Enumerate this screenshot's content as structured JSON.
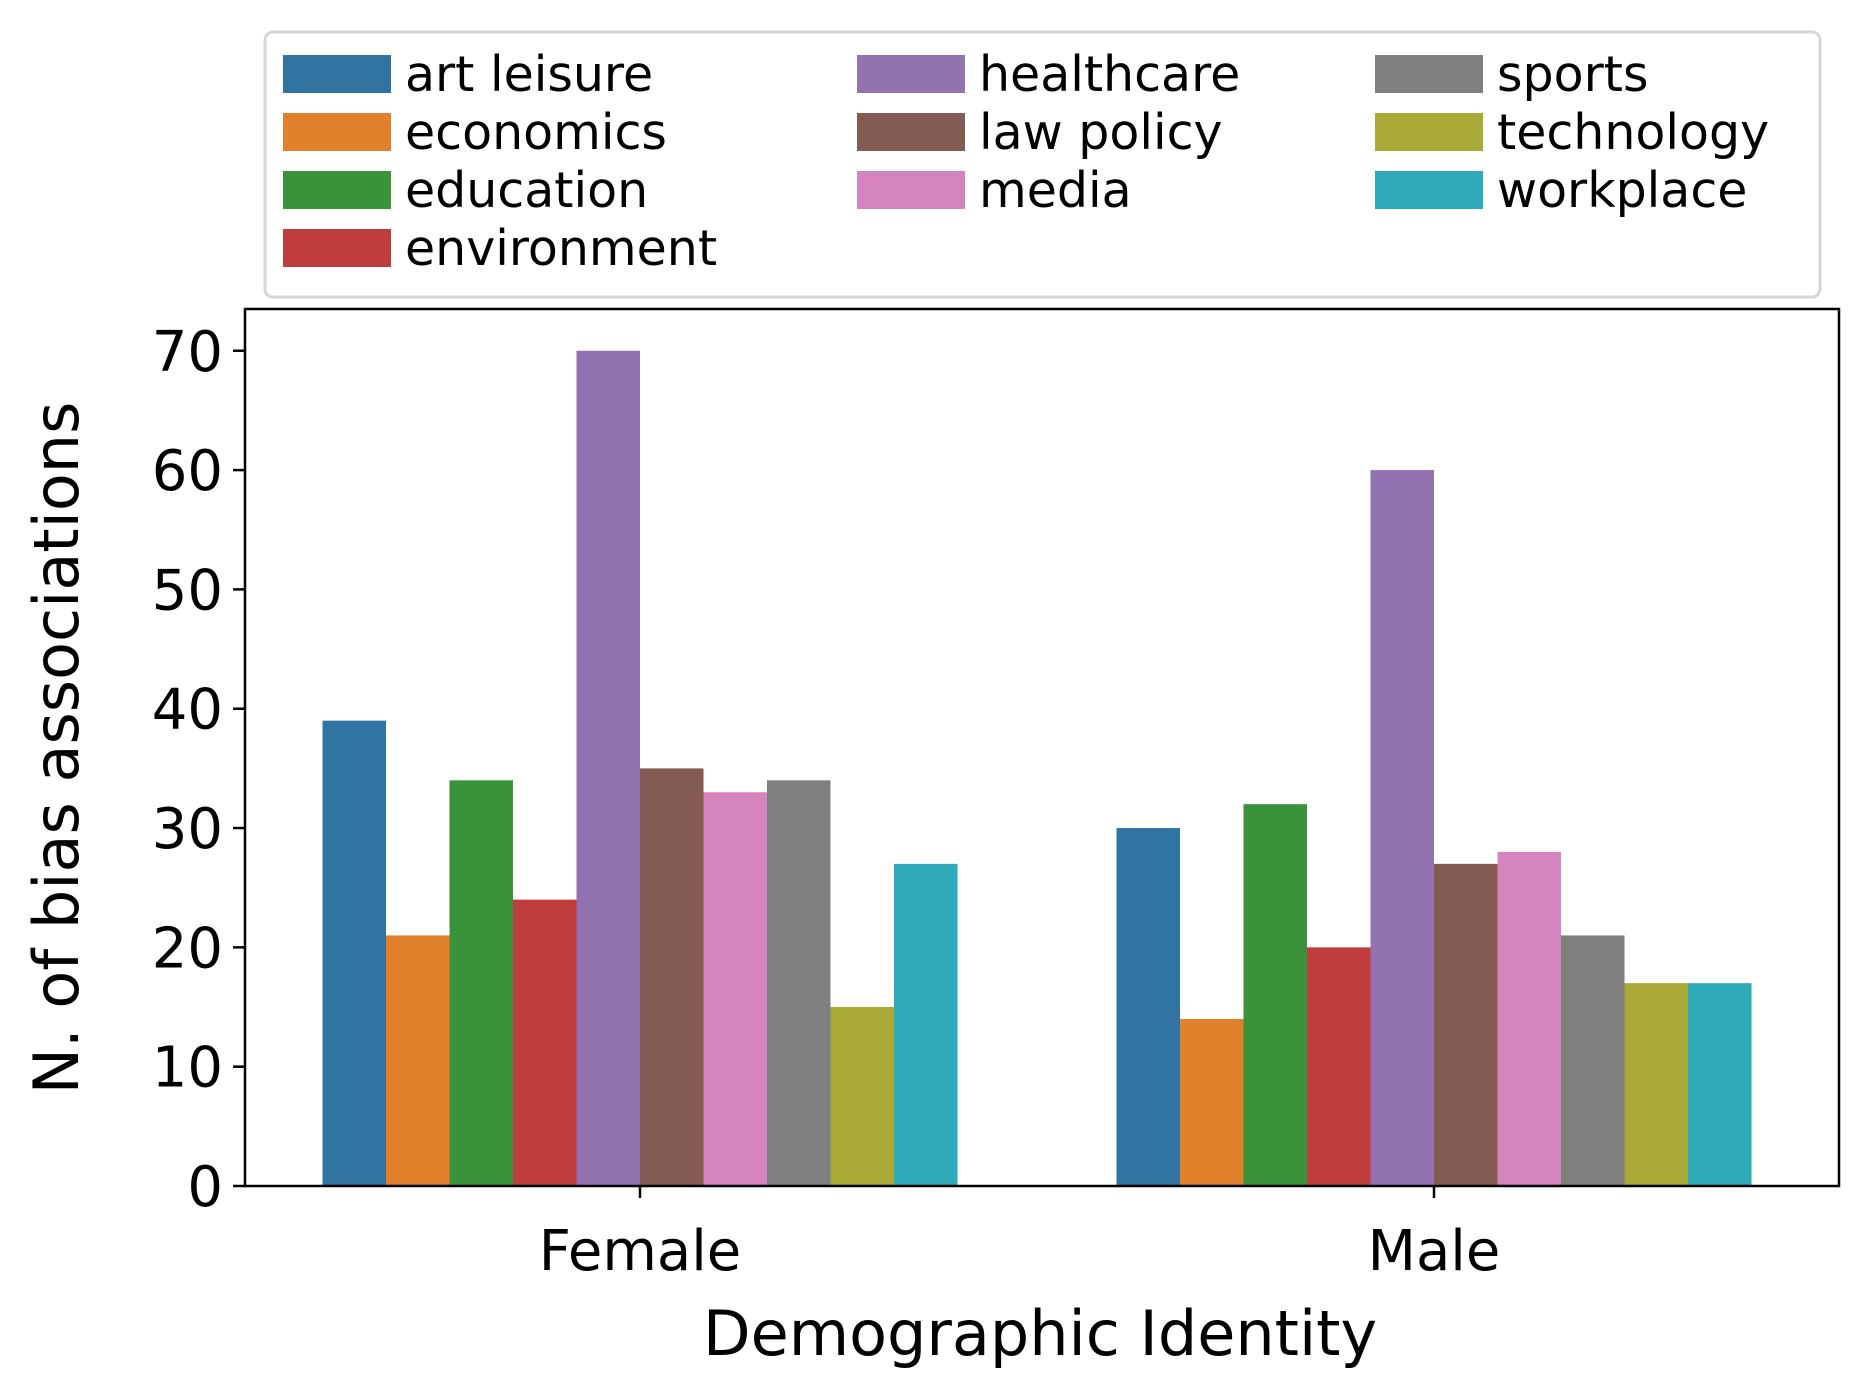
{
  "chart_data": {
    "type": "bar",
    "title": "",
    "xlabel": "Demographic Identity",
    "ylabel": "N. of bias associations",
    "categories": [
      "Female",
      "Male"
    ],
    "ylim": [
      0,
      73.5
    ],
    "yticks": [
      0,
      10,
      20,
      30,
      40,
      50,
      60,
      70
    ],
    "grid": false,
    "legend_position": "top (above plot), 3 columns",
    "series": [
      {
        "name": "art leisure",
        "color": "#3274a1",
        "values": [
          39,
          30
        ]
      },
      {
        "name": "economics",
        "color": "#e1812c",
        "values": [
          21,
          14
        ]
      },
      {
        "name": "education",
        "color": "#3a923a",
        "values": [
          34,
          32
        ]
      },
      {
        "name": "environment",
        "color": "#c03d3e",
        "values": [
          24,
          20
        ]
      },
      {
        "name": "healthcare",
        "color": "#9372b2",
        "values": [
          70,
          60
        ]
      },
      {
        "name": "law policy",
        "color": "#845b53",
        "values": [
          35,
          27
        ]
      },
      {
        "name": "media",
        "color": "#d684bd",
        "values": [
          33,
          28
        ]
      },
      {
        "name": "sports",
        "color": "#7f7f7f",
        "values": [
          34,
          21
        ]
      },
      {
        "name": "technology",
        "color": "#a9aa35",
        "values": [
          15,
          17
        ]
      },
      {
        "name": "workplace",
        "color": "#2eaab8",
        "values": [
          27,
          17
        ]
      }
    ]
  }
}
